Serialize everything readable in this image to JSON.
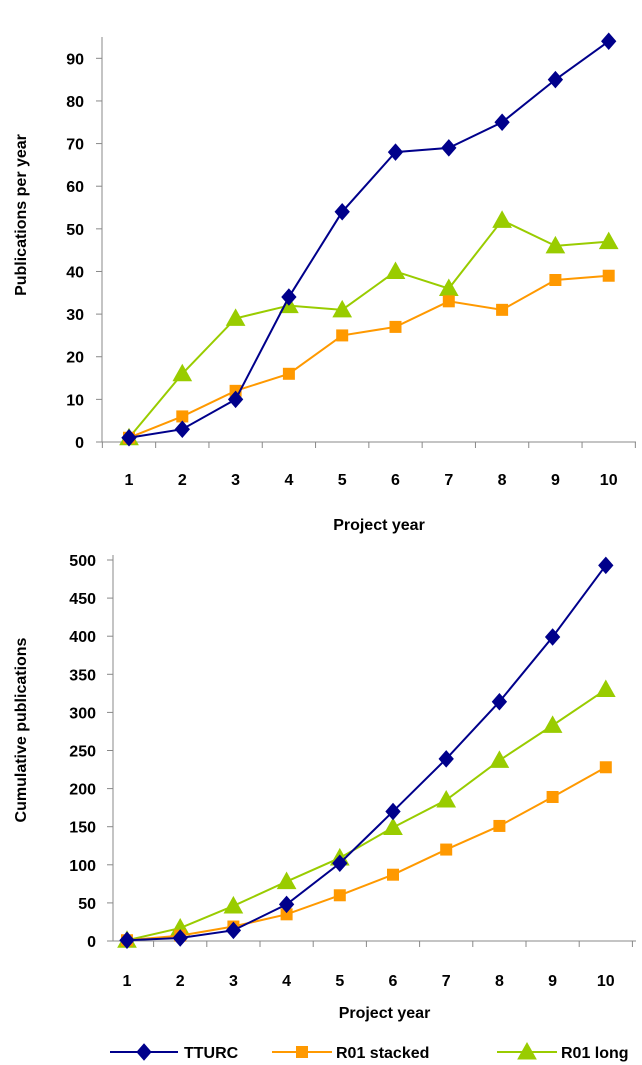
{
  "chart_data": [
    {
      "type": "line",
      "title": "",
      "xlabel": "Project year",
      "ylabel": "Publications per year",
      "x": [
        1,
        2,
        3,
        4,
        5,
        6,
        7,
        8,
        9,
        10
      ],
      "xticks": [
        "1",
        "2",
        "3",
        "4",
        "5",
        "6",
        "7",
        "8",
        "9",
        "10"
      ],
      "ylim": [
        0,
        95
      ],
      "yticks": [
        "0",
        "10",
        "20",
        "30",
        "40",
        "50",
        "60",
        "70",
        "80",
        "90"
      ],
      "yticks_values": [
        0,
        10,
        20,
        30,
        40,
        50,
        60,
        70,
        80,
        90
      ],
      "grid": false,
      "series": [
        {
          "name": "TTURC",
          "color": "#00008B",
          "marker": "diamond",
          "values": [
            1,
            3,
            10,
            34,
            54,
            68,
            69,
            75,
            85,
            94
          ]
        },
        {
          "name": "R01 stacked",
          "color": "#FF9900",
          "marker": "square",
          "values": [
            1,
            6,
            12,
            16,
            25,
            27,
            33,
            31,
            38,
            39
          ]
        },
        {
          "name": "R01 long",
          "color": "#99CC00",
          "marker": "triangle",
          "values": [
            1,
            16,
            29,
            32,
            31,
            40,
            36,
            52,
            46,
            47
          ]
        }
      ]
    },
    {
      "type": "line",
      "title": "",
      "xlabel": "Project year",
      "ylabel": "Cumulative publications",
      "x": [
        1,
        2,
        3,
        4,
        5,
        6,
        7,
        8,
        9,
        10
      ],
      "xticks": [
        "1",
        "2",
        "3",
        "4",
        "5",
        "6",
        "7",
        "8",
        "9",
        "10"
      ],
      "ylim": [
        0,
        500
      ],
      "yticks": [
        "0",
        "50",
        "100",
        "150",
        "200",
        "250",
        "300",
        "350",
        "400",
        "450",
        "500"
      ],
      "yticks_values": [
        0,
        50,
        100,
        150,
        200,
        250,
        300,
        350,
        400,
        450,
        500
      ],
      "grid": false,
      "series": [
        {
          "name": "TTURC",
          "color": "#00008B",
          "marker": "diamond",
          "values": [
            1,
            4,
            14,
            48,
            102,
            170,
            239,
            314,
            399,
            493
          ]
        },
        {
          "name": "R01 stacked",
          "color": "#FF9900",
          "marker": "square",
          "values": [
            1,
            7,
            19,
            35,
            60,
            87,
            120,
            151,
            189,
            228
          ]
        },
        {
          "name": "R01 long",
          "color": "#99CC00",
          "marker": "triangle",
          "values": [
            1,
            17,
            46,
            78,
            109,
            149,
            185,
            237,
            283,
            330
          ]
        }
      ]
    }
  ],
  "legend": {
    "placement": "bottom",
    "items": [
      {
        "label": "TTURC",
        "color": "#00008B",
        "marker": "diamond"
      },
      {
        "label": "R01 stacked",
        "color": "#FF9900",
        "marker": "square"
      },
      {
        "label": "R01 long",
        "color": "#99CC00",
        "marker": "triangle"
      }
    ]
  }
}
